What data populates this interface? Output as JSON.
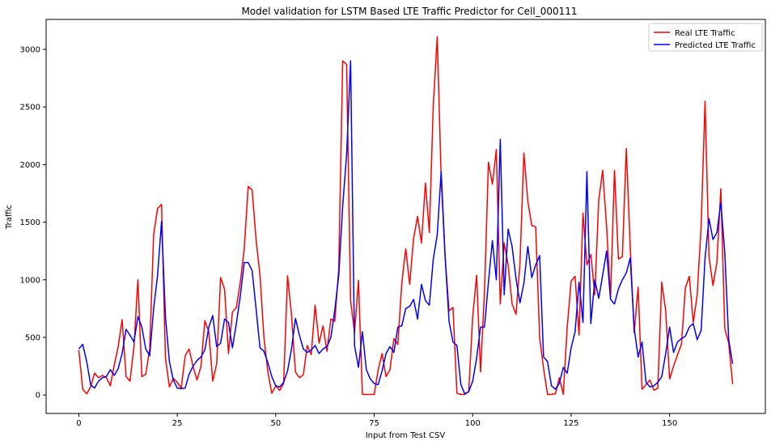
{
  "chart_data": {
    "type": "line",
    "title": "Model validation for LSTM Based LTE Traffic Predictor for Cell_000111",
    "xlabel": "Input from Test CSV",
    "ylabel": "Traffic",
    "xlim": [
      -8.3,
      174.3
    ],
    "ylim": [
      -160,
      3260
    ],
    "xticks": [
      0,
      25,
      50,
      75,
      100,
      125,
      150
    ],
    "yticks": [
      0,
      500,
      1000,
      1500,
      2000,
      2500,
      3000
    ],
    "grid": false,
    "legend_position": "top-right",
    "series": [
      {
        "name": "Real LTE Traffic",
        "color": "#ff0000",
        "points": [
          [
            0,
            390
          ],
          [
            1,
            50
          ],
          [
            2,
            10
          ],
          [
            3,
            70
          ],
          [
            4,
            190
          ],
          [
            5,
            150
          ],
          [
            6,
            170
          ],
          [
            7,
            150
          ],
          [
            8,
            80
          ],
          [
            9,
            260
          ],
          [
            10,
            420
          ],
          [
            11,
            655
          ],
          [
            12,
            160
          ],
          [
            13,
            120
          ],
          [
            14,
            420
          ],
          [
            15,
            1000
          ],
          [
            16,
            160
          ],
          [
            17,
            180
          ],
          [
            18,
            400
          ],
          [
            19,
            1390
          ],
          [
            20,
            1620
          ],
          [
            21,
            1655
          ],
          [
            22,
            320
          ],
          [
            23,
            70
          ],
          [
            24,
            145
          ],
          [
            25,
            110
          ],
          [
            26,
            60
          ],
          [
            27,
            340
          ],
          [
            28,
            400
          ],
          [
            29,
            250
          ],
          [
            30,
            130
          ],
          [
            31,
            245
          ],
          [
            32,
            645
          ],
          [
            33,
            550
          ],
          [
            34,
            120
          ],
          [
            35,
            270
          ],
          [
            36,
            1020
          ],
          [
            37,
            920
          ],
          [
            38,
            360
          ],
          [
            39,
            720
          ],
          [
            40,
            760
          ],
          [
            41,
            980
          ],
          [
            42,
            1270
          ],
          [
            43,
            1810
          ],
          [
            44,
            1780
          ],
          [
            45,
            1350
          ],
          [
            46,
            1040
          ],
          [
            47,
            500
          ],
          [
            48,
            200
          ],
          [
            49,
            15
          ],
          [
            50,
            80
          ],
          [
            51,
            40
          ],
          [
            52,
            100
          ],
          [
            53,
            1035
          ],
          [
            54,
            700
          ],
          [
            55,
            200
          ],
          [
            56,
            150
          ],
          [
            57,
            175
          ],
          [
            58,
            430
          ],
          [
            59,
            350
          ],
          [
            60,
            780
          ],
          [
            61,
            450
          ],
          [
            62,
            600
          ],
          [
            63,
            380
          ],
          [
            64,
            660
          ],
          [
            65,
            640
          ],
          [
            66,
            1100
          ],
          [
            67,
            2900
          ],
          [
            68,
            2870
          ],
          [
            69,
            820
          ],
          [
            70,
            540
          ],
          [
            71,
            995
          ],
          [
            72,
            5
          ],
          [
            73,
            5
          ],
          [
            74,
            5
          ],
          [
            75,
            5
          ],
          [
            76,
            220
          ],
          [
            77,
            360
          ],
          [
            78,
            160
          ],
          [
            79,
            220
          ],
          [
            80,
            490
          ],
          [
            81,
            440
          ],
          [
            82,
            970
          ],
          [
            83,
            1270
          ],
          [
            84,
            960
          ],
          [
            85,
            1360
          ],
          [
            86,
            1550
          ],
          [
            87,
            1320
          ],
          [
            88,
            1840
          ],
          [
            89,
            1410
          ],
          [
            90,
            2520
          ],
          [
            91,
            3110
          ],
          [
            92,
            1880
          ],
          [
            93,
            1200
          ],
          [
            94,
            730
          ],
          [
            95,
            760
          ],
          [
            96,
            15
          ],
          [
            97,
            5
          ],
          [
            98,
            5
          ],
          [
            99,
            30
          ],
          [
            100,
            680
          ],
          [
            101,
            1040
          ],
          [
            102,
            200
          ],
          [
            103,
            900
          ],
          [
            104,
            2020
          ],
          [
            105,
            1830
          ],
          [
            106,
            2130
          ],
          [
            107,
            790
          ],
          [
            108,
            1320
          ],
          [
            109,
            1130
          ],
          [
            110,
            790
          ],
          [
            111,
            700
          ],
          [
            112,
            1140
          ],
          [
            113,
            2100
          ],
          [
            114,
            1680
          ],
          [
            115,
            1470
          ],
          [
            116,
            1460
          ],
          [
            117,
            500
          ],
          [
            118,
            230
          ],
          [
            119,
            5
          ],
          [
            120,
            5
          ],
          [
            121,
            10
          ],
          [
            122,
            150
          ],
          [
            123,
            5
          ],
          [
            124,
            590
          ],
          [
            125,
            990
          ],
          [
            126,
            1030
          ],
          [
            127,
            520
          ],
          [
            128,
            1580
          ],
          [
            129,
            1130
          ],
          [
            130,
            1220
          ],
          [
            131,
            870
          ],
          [
            132,
            1690
          ],
          [
            133,
            1950
          ],
          [
            134,
            1460
          ],
          [
            135,
            840
          ],
          [
            136,
            1950
          ],
          [
            137,
            1180
          ],
          [
            138,
            1200
          ],
          [
            139,
            2140
          ],
          [
            140,
            1280
          ],
          [
            141,
            540
          ],
          [
            142,
            935
          ],
          [
            143,
            50
          ],
          [
            144,
            90
          ],
          [
            145,
            130
          ],
          [
            146,
            40
          ],
          [
            147,
            60
          ],
          [
            148,
            980
          ],
          [
            149,
            730
          ],
          [
            150,
            140
          ],
          [
            151,
            250
          ],
          [
            152,
            350
          ],
          [
            153,
            440
          ],
          [
            154,
            930
          ],
          [
            155,
            1030
          ],
          [
            156,
            630
          ],
          [
            157,
            870
          ],
          [
            158,
            1470
          ],
          [
            159,
            2550
          ],
          [
            160,
            1200
          ],
          [
            161,
            950
          ],
          [
            162,
            1150
          ],
          [
            163,
            1790
          ],
          [
            164,
            580
          ],
          [
            165,
            450
          ],
          [
            166,
            95
          ]
        ]
      },
      {
        "name": "Predicted LTE Traffic",
        "color": "#0000ff",
        "points": [
          [
            0,
            400
          ],
          [
            1,
            440
          ],
          [
            2,
            290
          ],
          [
            3,
            90
          ],
          [
            4,
            60
          ],
          [
            5,
            120
          ],
          [
            6,
            150
          ],
          [
            7,
            160
          ],
          [
            8,
            220
          ],
          [
            9,
            170
          ],
          [
            10,
            230
          ],
          [
            11,
            360
          ],
          [
            12,
            570
          ],
          [
            13,
            520
          ],
          [
            14,
            460
          ],
          [
            15,
            680
          ],
          [
            16,
            590
          ],
          [
            17,
            400
          ],
          [
            18,
            340
          ],
          [
            19,
            750
          ],
          [
            20,
            1040
          ],
          [
            21,
            1505
          ],
          [
            22,
            680
          ],
          [
            23,
            290
          ],
          [
            24,
            130
          ],
          [
            25,
            60
          ],
          [
            26,
            55
          ],
          [
            27,
            60
          ],
          [
            28,
            180
          ],
          [
            29,
            250
          ],
          [
            30,
            300
          ],
          [
            31,
            330
          ],
          [
            32,
            390
          ],
          [
            33,
            590
          ],
          [
            34,
            690
          ],
          [
            35,
            420
          ],
          [
            36,
            450
          ],
          [
            37,
            660
          ],
          [
            38,
            630
          ],
          [
            39,
            410
          ],
          [
            40,
            620
          ],
          [
            41,
            860
          ],
          [
            42,
            1150
          ],
          [
            43,
            1150
          ],
          [
            44,
            1080
          ],
          [
            45,
            750
          ],
          [
            46,
            410
          ],
          [
            47,
            380
          ],
          [
            48,
            280
          ],
          [
            49,
            160
          ],
          [
            50,
            80
          ],
          [
            51,
            70
          ],
          [
            52,
            110
          ],
          [
            53,
            210
          ],
          [
            54,
            400
          ],
          [
            55,
            665
          ],
          [
            56,
            520
          ],
          [
            57,
            400
          ],
          [
            58,
            370
          ],
          [
            59,
            390
          ],
          [
            60,
            430
          ],
          [
            61,
            360
          ],
          [
            62,
            400
          ],
          [
            63,
            420
          ],
          [
            64,
            500
          ],
          [
            65,
            740
          ],
          [
            66,
            1040
          ],
          [
            67,
            1640
          ],
          [
            68,
            2090
          ],
          [
            69,
            2900
          ],
          [
            70,
            430
          ],
          [
            71,
            240
          ],
          [
            72,
            550
          ],
          [
            73,
            220
          ],
          [
            74,
            140
          ],
          [
            75,
            100
          ],
          [
            76,
            90
          ],
          [
            77,
            210
          ],
          [
            78,
            360
          ],
          [
            79,
            420
          ],
          [
            80,
            370
          ],
          [
            81,
            590
          ],
          [
            82,
            600
          ],
          [
            83,
            750
          ],
          [
            84,
            770
          ],
          [
            85,
            830
          ],
          [
            86,
            660
          ],
          [
            87,
            960
          ],
          [
            88,
            820
          ],
          [
            89,
            780
          ],
          [
            90,
            1180
          ],
          [
            91,
            1390
          ],
          [
            92,
            1940
          ],
          [
            93,
            1200
          ],
          [
            94,
            640
          ],
          [
            95,
            460
          ],
          [
            96,
            430
          ],
          [
            97,
            90
          ],
          [
            98,
            10
          ],
          [
            99,
            30
          ],
          [
            100,
            120
          ],
          [
            101,
            320
          ],
          [
            102,
            590
          ],
          [
            103,
            590
          ],
          [
            104,
            980
          ],
          [
            105,
            1340
          ],
          [
            106,
            1000
          ],
          [
            107,
            2220
          ],
          [
            108,
            870
          ],
          [
            109,
            1440
          ],
          [
            110,
            1290
          ],
          [
            111,
            1010
          ],
          [
            112,
            800
          ],
          [
            113,
            970
          ],
          [
            114,
            1290
          ],
          [
            115,
            1020
          ],
          [
            116,
            1130
          ],
          [
            117,
            1210
          ],
          [
            118,
            330
          ],
          [
            119,
            290
          ],
          [
            120,
            80
          ],
          [
            121,
            50
          ],
          [
            122,
            100
          ],
          [
            123,
            240
          ],
          [
            124,
            190
          ],
          [
            125,
            410
          ],
          [
            126,
            550
          ],
          [
            127,
            980
          ],
          [
            128,
            630
          ],
          [
            129,
            1940
          ],
          [
            130,
            620
          ],
          [
            131,
            1000
          ],
          [
            132,
            840
          ],
          [
            133,
            1040
          ],
          [
            134,
            1250
          ],
          [
            135,
            830
          ],
          [
            136,
            790
          ],
          [
            137,
            920
          ],
          [
            138,
            1000
          ],
          [
            139,
            1060
          ],
          [
            140,
            1190
          ],
          [
            141,
            580
          ],
          [
            142,
            330
          ],
          [
            143,
            460
          ],
          [
            144,
            110
          ],
          [
            145,
            70
          ],
          [
            146,
            80
          ],
          [
            147,
            110
          ],
          [
            148,
            160
          ],
          [
            149,
            360
          ],
          [
            150,
            590
          ],
          [
            151,
            370
          ],
          [
            152,
            460
          ],
          [
            153,
            490
          ],
          [
            154,
            510
          ],
          [
            155,
            590
          ],
          [
            156,
            620
          ],
          [
            157,
            480
          ],
          [
            158,
            560
          ],
          [
            159,
            1190
          ],
          [
            160,
            1530
          ],
          [
            161,
            1350
          ],
          [
            162,
            1410
          ],
          [
            163,
            1670
          ],
          [
            164,
            1240
          ],
          [
            165,
            480
          ],
          [
            166,
            270
          ]
        ]
      }
    ]
  }
}
